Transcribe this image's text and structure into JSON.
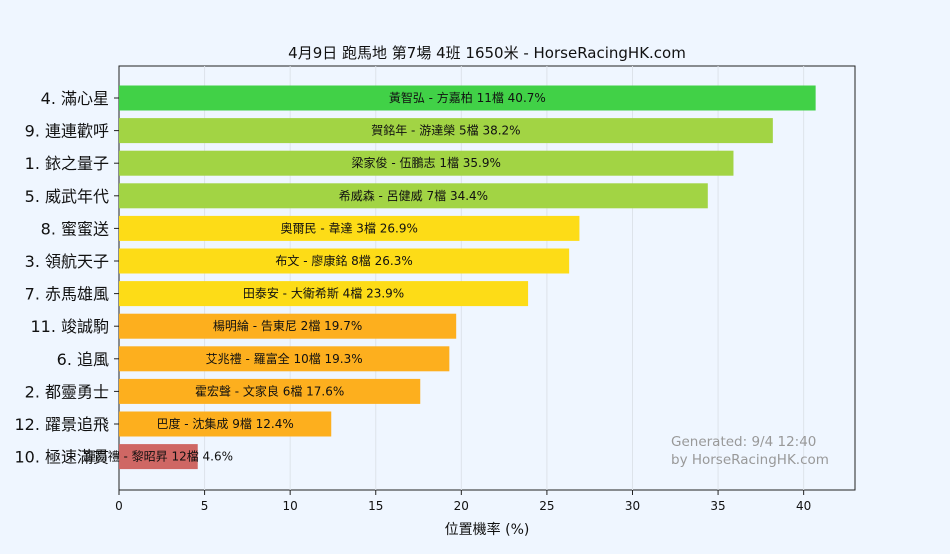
{
  "chart_data": {
    "type": "bar",
    "orientation": "horizontal",
    "title": "4月9日  跑馬地  第7場  4班  1650米 - HorseRacingHK.com",
    "xlabel": "位置機率 (%)",
    "ylabel": "",
    "xlim": [
      0,
      43
    ],
    "xticks": [
      0,
      5,
      10,
      15,
      20,
      25,
      30,
      35,
      40
    ],
    "grid": true,
    "watermark": [
      "Generated: 9/4 12:40",
      "by HorseRacingHK.com"
    ],
    "colors": {
      "green": "#41d147",
      "lightgreen": "#a2d444",
      "yellow": "#fddc17",
      "orange": "#fdaf1e",
      "red": "#cf6764"
    },
    "bars": [
      {
        "horse": "4. 滿心星",
        "label": "黃智弘 - 方嘉柏 11檔  40.7%",
        "value": 40.7,
        "color": "green"
      },
      {
        "horse": "9. 連連歡呼",
        "label": "賀銘年 - 游達榮 5檔  38.2%",
        "value": 38.2,
        "color": "lightgreen"
      },
      {
        "horse": "1. 銥之量子",
        "label": "梁家俊 - 伍鵬志 1檔  35.9%",
        "value": 35.9,
        "color": "lightgreen"
      },
      {
        "horse": "5. 威武年代",
        "label": "希威森 - 呂健威 7檔  34.4%",
        "value": 34.4,
        "color": "lightgreen"
      },
      {
        "horse": "8. 蜜蜜送",
        "label": "奧爾民 - 韋達 3檔  26.9%",
        "value": 26.9,
        "color": "yellow"
      },
      {
        "horse": "3. 領航天子",
        "label": "布文 - 廖康銘 8檔  26.3%",
        "value": 26.3,
        "color": "yellow"
      },
      {
        "horse": "7. 赤馬雄風",
        "label": "田泰安 - 大衛希斯 4檔  23.9%",
        "value": 23.9,
        "color": "yellow"
      },
      {
        "horse": "11. 竣誠駒",
        "label": "楊明綸 - 告東尼 2檔  19.7%",
        "value": 19.7,
        "color": "orange"
      },
      {
        "horse": "6. 追風",
        "label": "艾兆禮 - 羅富全 10檔  19.3%",
        "value": 19.3,
        "color": "orange"
      },
      {
        "horse": "2. 都靈勇士",
        "label": "霍宏聲 - 文家良 6檔  17.6%",
        "value": 17.6,
        "color": "orange"
      },
      {
        "horse": "12. 躍景追飛",
        "label": "巴度 - 沈集成 9檔  12.4%",
        "value": 12.4,
        "color": "orange"
      },
      {
        "horse": "10. 極速滿貫",
        "label": "鍾易禮 - 黎昭昇 12檔  4.6%",
        "value": 4.6,
        "color": "red"
      }
    ]
  }
}
